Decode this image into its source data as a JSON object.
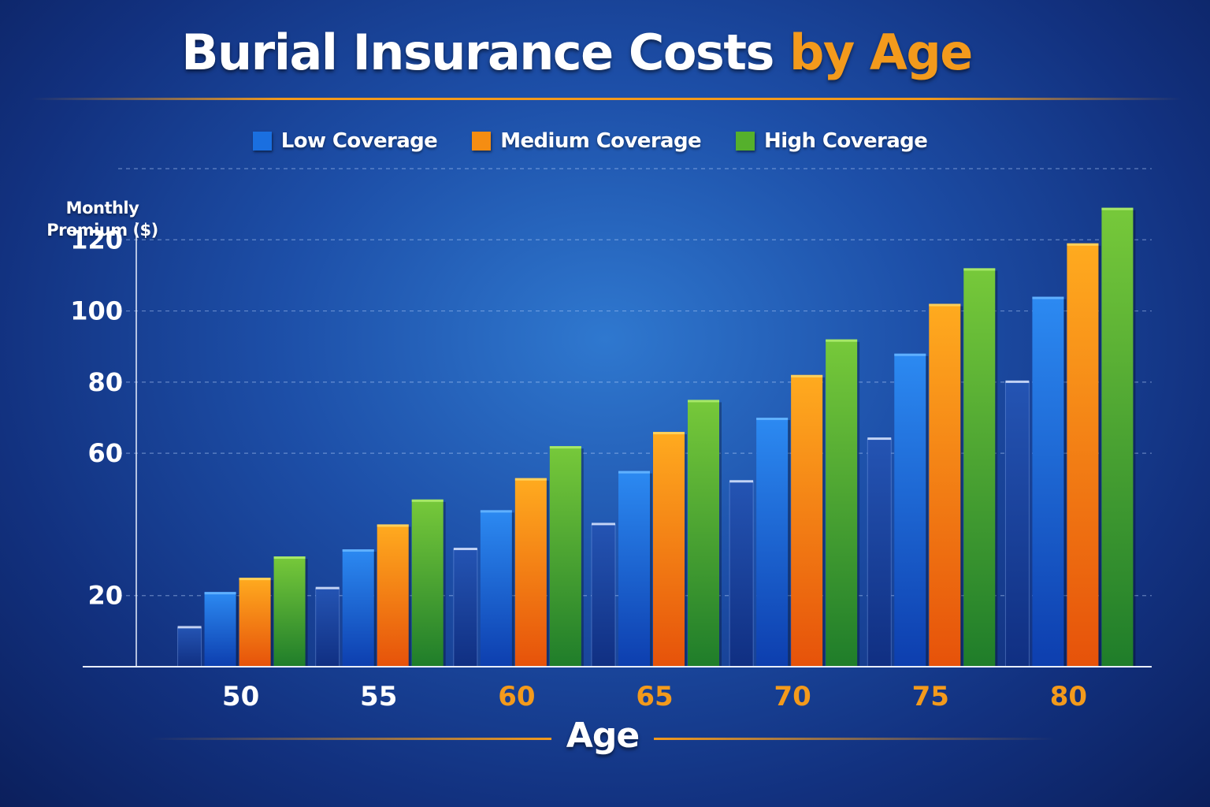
{
  "title": {
    "main": "Burial Insurance Costs",
    "accent": "by Age"
  },
  "colors": {
    "low": "#1a6fe0",
    "medium": "#f58d12",
    "high": "#55b02c",
    "accent": "#f39a1c",
    "ghost": "#1a3f9a"
  },
  "legend": [
    {
      "name": "Low Coverage",
      "color": "#1a6fe0"
    },
    {
      "name": "Medium Coverage",
      "color": "#f58d12"
    },
    {
      "name": "High Coverage",
      "color": "#55b02c"
    }
  ],
  "chart_data": {
    "type": "bar",
    "title": "Burial Insurance Costs by Age",
    "xlabel": "Age",
    "ylabel_lines": [
      "Monthly",
      "Premium ($)"
    ],
    "categories": [
      "50",
      "55",
      "60",
      "65",
      "70",
      "75",
      "80"
    ],
    "category_label_colors": [
      "#ffffff",
      "#ffffff",
      "#f39a1c",
      "#f39a1c",
      "#f39a1c",
      "#f39a1c",
      "#f39a1c"
    ],
    "y_ticks": [
      "20",
      "60",
      "80",
      "100",
      "120"
    ],
    "ylim": [
      0,
      140
    ],
    "grid": true,
    "legend_position": "top",
    "series": [
      {
        "name": "Low Coverage",
        "values": [
          21,
          33,
          44,
          55,
          70,
          88,
          104
        ]
      },
      {
        "name": "Medium Coverage",
        "values": [
          25,
          40,
          53,
          66,
          82,
          102,
          119
        ]
      },
      {
        "name": "High Coverage",
        "values": [
          31,
          47,
          62,
          75,
          92,
          112,
          129
        ]
      }
    ],
    "unlabeled_ghost_values": [
      11,
      22,
      33,
      40,
      52,
      64,
      80
    ]
  }
}
